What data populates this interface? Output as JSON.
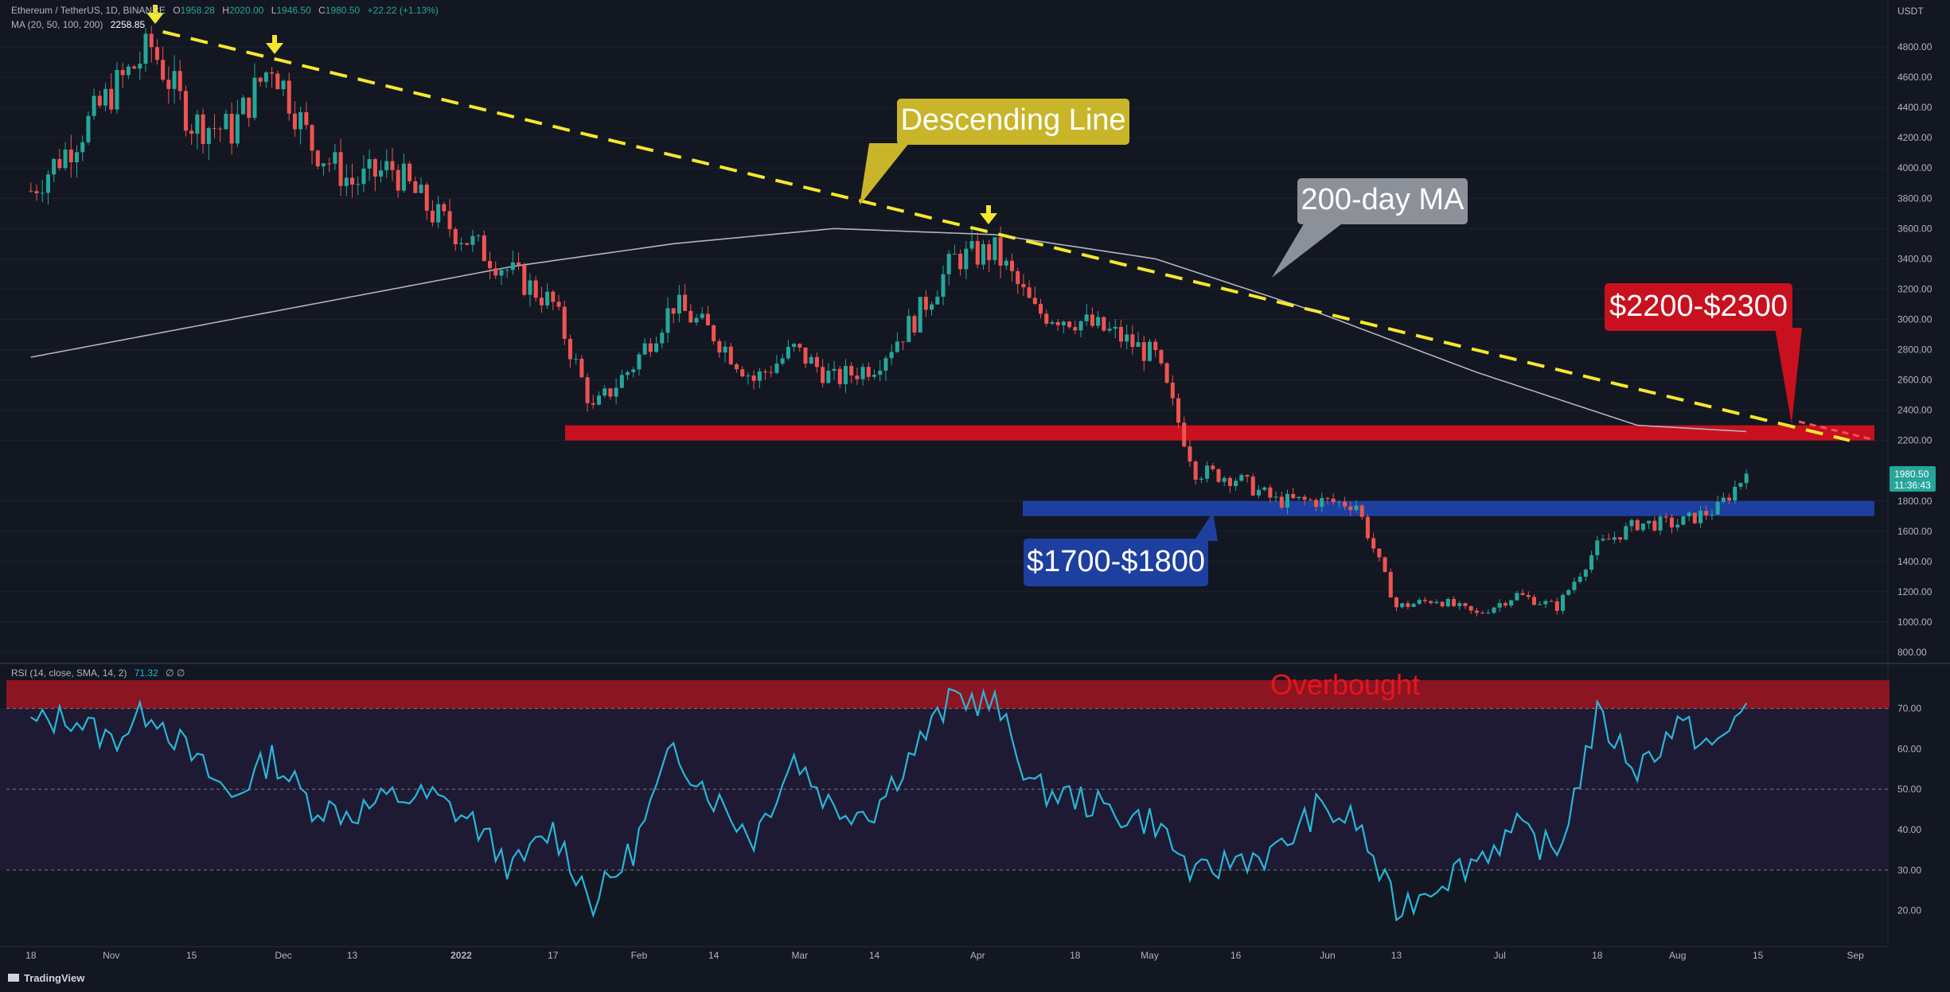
{
  "header": {
    "symbol": "Ethereum / TetherUS, 1D, BINANCE",
    "ohlc": {
      "o_label": "O",
      "o": "1958.28",
      "h_label": "H",
      "h": "2020.00",
      "l_label": "L",
      "l": "1946.50",
      "c_label": "C",
      "c": "1980.50",
      "change": "+22.22 (+1.13%)"
    },
    "ma_legend": "MA (20, 50, 100, 200)",
    "ma_value": "2258.85"
  },
  "price_axis": {
    "unit": "USDT",
    "ticks": [
      "4800.00",
      "4600.00",
      "4400.00",
      "4200.00",
      "4000.00",
      "3800.00",
      "3600.00",
      "3400.00",
      "3200.00",
      "3000.00",
      "2800.00",
      "2600.00",
      "2400.00",
      "2200.00",
      "1800.00",
      "1600.00",
      "1400.00",
      "1200.00",
      "1000.00",
      "800.00"
    ],
    "last_price": "1980.50",
    "countdown": "11:36:43"
  },
  "time_axis": {
    "ticks": [
      "18",
      "Nov",
      "15",
      "Dec",
      "13",
      "2022",
      "17",
      "Feb",
      "14",
      "Mar",
      "14",
      "Apr",
      "18",
      "May",
      "16",
      "Jun",
      "13",
      "Jul",
      "18",
      "Aug",
      "15",
      "Sep"
    ]
  },
  "annotations": {
    "descending_line": "Descending Line",
    "ma200": "200-day MA",
    "resistance": "$2200-$2300",
    "support": "$1700-$1800",
    "overbought": "Overbought"
  },
  "rsi": {
    "legend": "RSI (14, close, SMA, 14, 2)",
    "value": "71.32",
    "extra": "∅ ∅",
    "ticks": [
      "70.00",
      "60.00",
      "50.00",
      "40.00",
      "30.00",
      "20.00"
    ]
  },
  "branding": {
    "name": "TradingView"
  },
  "colors": {
    "background": "#131722",
    "bull": "#26a69a",
    "bear": "#ef5350",
    "ma200": "#b2b5be",
    "trendline": "#f5e82a",
    "resistance_zone": "#c8101e",
    "support_zone": "#1d3fa0",
    "rsi_line": "#29b6d8",
    "overbought_zone": "#8b1520",
    "overbought_text": "#e8141e"
  },
  "chart_data": {
    "type": "candlestick",
    "symbol": "ETH/USDT",
    "interval": "1D",
    "ylim": [
      800,
      4900
    ],
    "close_path": [
      [
        "2021-10-18",
        3850
      ],
      [
        "2021-10-25",
        4150
      ],
      [
        "2021-11-01",
        4500
      ],
      [
        "2021-11-08",
        4800
      ],
      [
        "2021-11-15",
        4300
      ],
      [
        "2021-11-22",
        4250
      ],
      [
        "2021-11-29",
        4700
      ],
      [
        "2021-12-06",
        4150
      ],
      [
        "2021-12-13",
        3900
      ],
      [
        "2021-12-20",
        4000
      ],
      [
        "2021-12-27",
        3700
      ],
      [
        "2022-01-03",
        3500
      ],
      [
        "2022-01-10",
        3300
      ],
      [
        "2022-01-17",
        3100
      ],
      [
        "2022-01-24",
        2400
      ],
      [
        "2022-01-31",
        2700
      ],
      [
        "2022-02-07",
        3100
      ],
      [
        "2022-02-14",
        2900
      ],
      [
        "2022-02-21",
        2600
      ],
      [
        "2022-02-28",
        2800
      ],
      [
        "2022-03-07",
        2600
      ],
      [
        "2022-03-14",
        2700
      ],
      [
        "2022-03-21",
        3000
      ],
      [
        "2022-03-28",
        3400
      ],
      [
        "2022-04-04",
        3450
      ],
      [
        "2022-04-11",
        3050
      ],
      [
        "2022-04-18",
        3000
      ],
      [
        "2022-04-25",
        2900
      ],
      [
        "2022-05-02",
        2750
      ],
      [
        "2022-05-09",
        2000
      ],
      [
        "2022-05-16",
        1950
      ],
      [
        "2022-05-23",
        1800
      ],
      [
        "2022-05-30",
        1800
      ],
      [
        "2022-06-06",
        1780
      ],
      [
        "2022-06-13",
        1100
      ],
      [
        "2022-06-20",
        1150
      ],
      [
        "2022-06-27",
        1050
      ],
      [
        "2022-07-04",
        1180
      ],
      [
        "2022-07-11",
        1100
      ],
      [
        "2022-07-18",
        1500
      ],
      [
        "2022-07-25",
        1650
      ],
      [
        "2022-08-01",
        1650
      ],
      [
        "2022-08-08",
        1750
      ],
      [
        "2022-08-13",
        1980.5
      ]
    ],
    "ma200_path": [
      [
        "2021-10-18",
        2750
      ],
      [
        "2021-11-15",
        2950
      ],
      [
        "2021-12-13",
        3150
      ],
      [
        "2022-01-10",
        3350
      ],
      [
        "2022-02-07",
        3500
      ],
      [
        "2022-03-07",
        3600
      ],
      [
        "2022-04-04",
        3560
      ],
      [
        "2022-05-02",
        3400
      ],
      [
        "2022-05-30",
        3050
      ],
      [
        "2022-06-27",
        2650
      ],
      [
        "2022-07-25",
        2300
      ],
      [
        "2022-08-13",
        2258.85
      ]
    ],
    "descending_line": [
      [
        "2021-11-10",
        4900
      ],
      [
        "2022-08-31",
        2200
      ]
    ],
    "resistance_zone": [
      2200,
      2300
    ],
    "support_zone": [
      1700,
      1800
    ],
    "rsi_path": [
      [
        "2021-10-18",
        66
      ],
      [
        "2021-10-25",
        68
      ],
      [
        "2021-11-01",
        62
      ],
      [
        "2021-11-08",
        70
      ],
      [
        "2021-11-15",
        58
      ],
      [
        "2021-11-22",
        48
      ],
      [
        "2021-11-29",
        58
      ],
      [
        "2021-12-06",
        46
      ],
      [
        "2021-12-13",
        44
      ],
      [
        "2021-12-20",
        48
      ],
      [
        "2021-12-27",
        48
      ],
      [
        "2022-01-03",
        42
      ],
      [
        "2022-01-10",
        30
      ],
      [
        "2022-01-17",
        40
      ],
      [
        "2022-01-24",
        22
      ],
      [
        "2022-01-31",
        35
      ],
      [
        "2022-02-07",
        60
      ],
      [
        "2022-02-14",
        48
      ],
      [
        "2022-02-21",
        38
      ],
      [
        "2022-02-28",
        58
      ],
      [
        "2022-03-07",
        45
      ],
      [
        "2022-03-14",
        45
      ],
      [
        "2022-03-21",
        60
      ],
      [
        "2022-03-28",
        73
      ],
      [
        "2022-04-04",
        71
      ],
      [
        "2022-04-11",
        50
      ],
      [
        "2022-04-18",
        48
      ],
      [
        "2022-04-25",
        44
      ],
      [
        "2022-05-02",
        42
      ],
      [
        "2022-05-09",
        28
      ],
      [
        "2022-05-16",
        33
      ],
      [
        "2022-05-23",
        34
      ],
      [
        "2022-05-30",
        45
      ],
      [
        "2022-06-06",
        42
      ],
      [
        "2022-06-13",
        20
      ],
      [
        "2022-06-20",
        27
      ],
      [
        "2022-06-27",
        33
      ],
      [
        "2022-07-04",
        40
      ],
      [
        "2022-07-11",
        34
      ],
      [
        "2022-07-18",
        68
      ],
      [
        "2022-07-25",
        55
      ],
      [
        "2022-08-01",
        66
      ],
      [
        "2022-08-08",
        60
      ],
      [
        "2022-08-13",
        71.32
      ]
    ],
    "rsi_ylim": [
      15,
      77
    ],
    "rsi_levels": [
      30,
      50,
      70
    ]
  }
}
